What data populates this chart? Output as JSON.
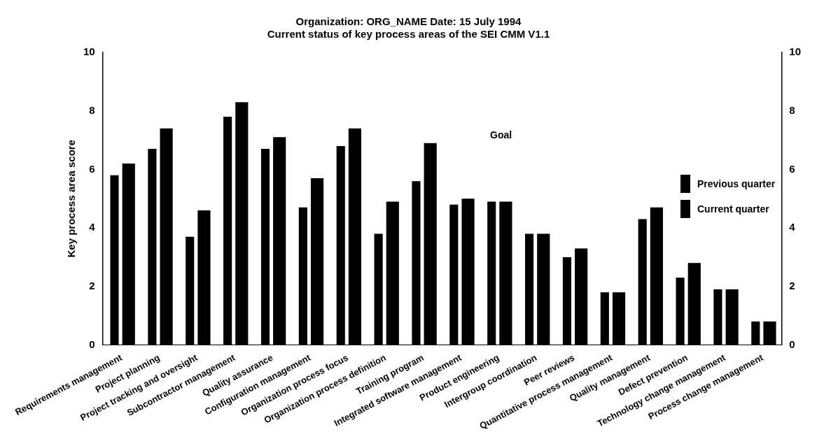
{
  "chart_data": {
    "type": "bar",
    "title": "Organization: ORG_NAME Date: 15 July 1994",
    "subtitle": "Current status of key process areas of the SEI CMM V1.1",
    "ylabel": "Key process area score",
    "categories": [
      "Requirements management",
      "Project planning",
      "Project tracking and oversight",
      "Subcontractor management",
      "Quality assurance",
      "Configuration management",
      "Organization process focus",
      "Organization process definition",
      "Training program",
      "Integrated software management",
      "Product engineering",
      "Intergroup coordination",
      "Peer reviews",
      "Quantitative process management",
      "Quality management",
      "Defect prevention",
      "Technology change management",
      "Process change management"
    ],
    "series": [
      {
        "name": "Previous quarter",
        "color": "#000000",
        "values": [
          5.8,
          6.7,
          3.7,
          7.8,
          6.7,
          4.7,
          6.8,
          3.8,
          5.6,
          4.8,
          4.9,
          3.8,
          3.0,
          1.8,
          4.3,
          2.3,
          1.9,
          0.8
        ]
      },
      {
        "name": "Current quarter",
        "color": "#000000",
        "values": [
          6.2,
          7.4,
          4.6,
          8.3,
          7.1,
          5.7,
          7.4,
          4.9,
          6.9,
          5.0,
          4.9,
          3.8,
          3.3,
          1.8,
          4.7,
          2.8,
          1.9,
          0.8
        ]
      }
    ],
    "ylim": [
      0,
      10
    ],
    "yticks": [
      0,
      2,
      4,
      6,
      8,
      10
    ],
    "y2lim": [
      0,
      10
    ],
    "y2ticks": [
      0,
      2,
      4,
      6,
      8,
      10
    ],
    "legend": "right",
    "annotations": [
      "Goal"
    ]
  }
}
